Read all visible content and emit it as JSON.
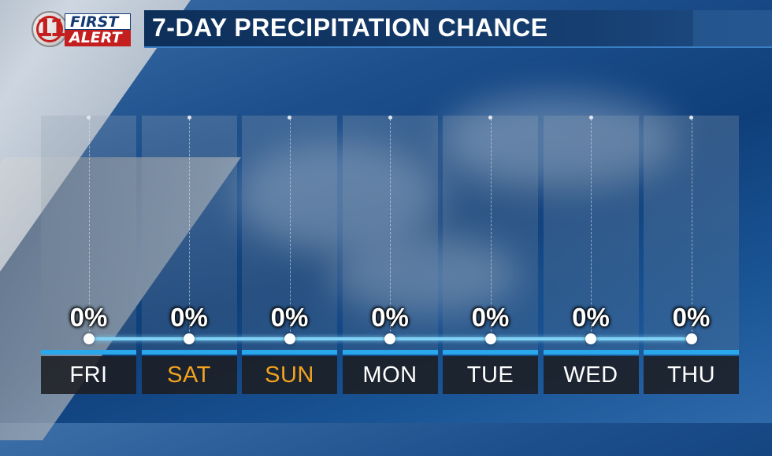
{
  "logo": {
    "number": "11",
    "line1": "FIRST",
    "line2": "ALERT"
  },
  "title": "7-DAY PRECIPITATION CHANCE",
  "colors": {
    "accent": "#29a9ec",
    "line": "#7fd1f6",
    "weekend": "#f3a31c",
    "title_bg": "#0d2f5a"
  },
  "chart_data": {
    "type": "line",
    "title": "7-DAY PRECIPITATION CHANCE",
    "categories": [
      "FRI",
      "SAT",
      "SUN",
      "MON",
      "TUE",
      "WED",
      "THU"
    ],
    "weekend": [
      "SAT",
      "SUN"
    ],
    "series": [
      {
        "values": [
          0,
          0,
          0,
          0,
          0,
          0,
          0
        ],
        "unit": "%"
      }
    ],
    "value_labels": [
      "0%",
      "0%",
      "0%",
      "0%",
      "0%",
      "0%",
      "0%"
    ],
    "ylim": [
      0,
      100
    ],
    "grid": true
  }
}
